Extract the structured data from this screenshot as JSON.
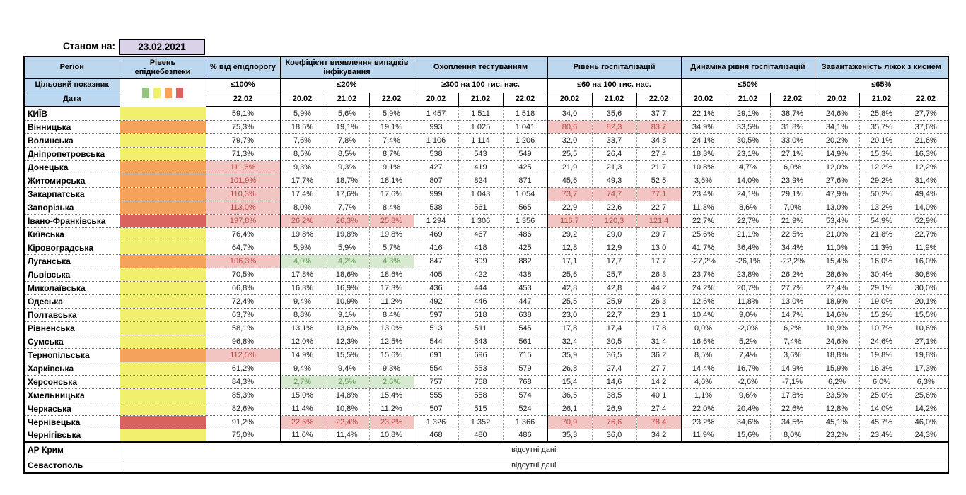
{
  "meta": {
    "as_of_label": "Станом на:",
    "as_of_date": "23.02.2021",
    "missing_data_text": "відсутні дані"
  },
  "colors": {
    "header_bg": "#BDD7EE",
    "date_cell_bg": "#D9D2E9",
    "level": {
      "green": "#93C47D",
      "yellow": "#F2EF6E",
      "orange": "#F5A35C",
      "red": "#D9625F"
    },
    "hl_red_bg": "#F2C5C3",
    "hl_red_text": "#B84743",
    "hl_green_bg": "#D8E9D1",
    "hl_green_text": "#5D9A4C"
  },
  "header": {
    "region": "Регіон",
    "level": "Рівень епіднебезпеки",
    "target_label": "Цільовий показник",
    "date_label": "Дата",
    "legend_colors": [
      "#93C47D",
      "#F2EF6E",
      "#F5A35C",
      "#D9625F"
    ],
    "groups": [
      {
        "title": "% від епідпорогу",
        "target": "≤100%",
        "dates": [
          "22.02"
        ]
      },
      {
        "title": "Коефіцієнт виявлення випадків інфікування",
        "target": "≤20%",
        "dates": [
          "20.02",
          "21.02",
          "22.02"
        ]
      },
      {
        "title": "Охоплення тестуванням",
        "target": "≥300 на 100 тис. нас.",
        "dates": [
          "20.02",
          "21.02",
          "22.02"
        ]
      },
      {
        "title": "Рівень госпіталізацій",
        "target": "≤60 на 100 тис. нас.",
        "dates": [
          "20.02",
          "21.02",
          "22.02"
        ]
      },
      {
        "title": "Динаміка рівня госпіталізацій",
        "target": "≤50%",
        "dates": [
          "20.02",
          "21.02",
          "22.02"
        ]
      },
      {
        "title": "Завантаженість ліжок з киснем",
        "target": "≤65%",
        "dates": [
          "20.02",
          "21.02",
          "22.02"
        ]
      }
    ]
  },
  "rows": [
    {
      "region": "КИЇВ",
      "level": "yellow",
      "hl": "................",
      "values": [
        "59,1%",
        "5,9%",
        "5,6%",
        "5,9%",
        "1 457",
        "1 511",
        "1 518",
        "34,0",
        "35,6",
        "37,7",
        "22,1%",
        "29,1%",
        "38,7%",
        "24,6%",
        "25,8%",
        "27,7%"
      ]
    },
    {
      "region": "Вінницька",
      "level": "orange",
      "hl": ".......rrr......",
      "values": [
        "75,3%",
        "18,5%",
        "19,1%",
        "19,1%",
        "993",
        "1 025",
        "1 041",
        "80,6",
        "82,3",
        "83,7",
        "34,9%",
        "33,5%",
        "31,8%",
        "34,1%",
        "35,7%",
        "37,6%"
      ]
    },
    {
      "region": "Волинська",
      "level": "yellow",
      "hl": "................",
      "values": [
        "79,7%",
        "7,6%",
        "7,8%",
        "7,4%",
        "1 106",
        "1 114",
        "1 206",
        "32,0",
        "33,7",
        "34,8",
        "24,1%",
        "30,5%",
        "33,0%",
        "20,2%",
        "20,1%",
        "21,6%"
      ]
    },
    {
      "region": "Дніпропетровська",
      "level": "yellow",
      "hl": "................",
      "values": [
        "71,3%",
        "8,5%",
        "8,5%",
        "8,7%",
        "538",
        "543",
        "549",
        "25,5",
        "26,4",
        "27,4",
        "18,3%",
        "23,1%",
        "27,1%",
        "14,9%",
        "15,3%",
        "16,3%"
      ]
    },
    {
      "region": "Донецька",
      "level": "orange",
      "hl": "r...............",
      "values": [
        "111,6%",
        "9,3%",
        "9,3%",
        "9,1%",
        "427",
        "419",
        "425",
        "21,9",
        "21,3",
        "21,7",
        "10,8%",
        "4,7%",
        "6,0%",
        "12,0%",
        "12,2%",
        "12,2%"
      ]
    },
    {
      "region": "Житомирська",
      "level": "orange",
      "hl": "r...............",
      "values": [
        "101,9%",
        "17,7%",
        "18,7%",
        "18,1%",
        "807",
        "824",
        "871",
        "45,6",
        "49,3",
        "52,5",
        "3,6%",
        "14,0%",
        "23,9%",
        "27,6%",
        "29,2%",
        "31,4%"
      ]
    },
    {
      "region": "Закарпатська",
      "level": "orange",
      "hl": "r......rrr......",
      "values": [
        "110,3%",
        "17,4%",
        "17,6%",
        "17,6%",
        "999",
        "1 043",
        "1 054",
        "73,7",
        "74,7",
        "77,1",
        "23,4%",
        "24,1%",
        "29,1%",
        "47,9%",
        "50,2%",
        "49,4%"
      ]
    },
    {
      "region": "Запорізька",
      "level": "orange",
      "hl": "r...............",
      "values": [
        "113,0%",
        "8,0%",
        "7,7%",
        "8,4%",
        "538",
        "561",
        "565",
        "22,9",
        "22,6",
        "22,7",
        "11,3%",
        "8,6%",
        "7,0%",
        "13,0%",
        "13,2%",
        "14,0%"
      ]
    },
    {
      "region": "Івано-Франківська",
      "level": "red",
      "hl": "rrrr...rrr......",
      "values": [
        "197,8%",
        "26,2%",
        "26,3%",
        "25,8%",
        "1 294",
        "1 306",
        "1 356",
        "116,7",
        "120,3",
        "121,4",
        "22,7%",
        "22,7%",
        "21,9%",
        "53,4%",
        "54,9%",
        "52,9%"
      ]
    },
    {
      "region": "Київська",
      "level": "yellow",
      "hl": "................",
      "values": [
        "76,4%",
        "19,8%",
        "19,8%",
        "19,8%",
        "469",
        "467",
        "486",
        "29,2",
        "29,0",
        "29,7",
        "25,6%",
        "21,1%",
        "22,5%",
        "21,0%",
        "21,8%",
        "22,7%"
      ]
    },
    {
      "region": "Кіровоградська",
      "level": "yellow",
      "hl": "................",
      "values": [
        "64,7%",
        "5,9%",
        "5,9%",
        "5,7%",
        "416",
        "418",
        "425",
        "12,8",
        "12,9",
        "13,0",
        "41,7%",
        "36,4%",
        "34,4%",
        "11,0%",
        "11,3%",
        "11,9%"
      ]
    },
    {
      "region": "Луганська",
      "level": "orange",
      "hl": "rggg............",
      "values": [
        "106,3%",
        "4,0%",
        "4,2%",
        "4,3%",
        "847",
        "809",
        "882",
        "17,1",
        "17,7",
        "17,7",
        "-27,2%",
        "-26,1%",
        "-22,2%",
        "15,4%",
        "16,0%",
        "16,0%"
      ]
    },
    {
      "region": "Львівська",
      "level": "yellow",
      "hl": "................",
      "values": [
        "70,5%",
        "17,8%",
        "18,6%",
        "18,6%",
        "405",
        "422",
        "438",
        "25,6",
        "25,7",
        "26,3",
        "23,7%",
        "23,8%",
        "26,2%",
        "28,6%",
        "30,4%",
        "30,8%"
      ]
    },
    {
      "region": "Миколаївська",
      "level": "yellow",
      "hl": "................",
      "values": [
        "66,8%",
        "16,3%",
        "16,9%",
        "17,3%",
        "436",
        "444",
        "453",
        "42,8",
        "42,8",
        "44,2",
        "24,2%",
        "20,7%",
        "27,7%",
        "27,4%",
        "29,1%",
        "30,0%"
      ]
    },
    {
      "region": "Одеська",
      "level": "yellow",
      "hl": "................",
      "values": [
        "72,4%",
        "9,4%",
        "10,9%",
        "11,2%",
        "492",
        "446",
        "447",
        "25,5",
        "25,9",
        "26,3",
        "12,6%",
        "11,8%",
        "13,0%",
        "18,9%",
        "19,0%",
        "20,1%"
      ]
    },
    {
      "region": "Полтавська",
      "level": "yellow",
      "hl": "................",
      "values": [
        "63,7%",
        "8,8%",
        "9,1%",
        "8,4%",
        "597",
        "618",
        "638",
        "23,0",
        "22,7",
        "23,1",
        "10,4%",
        "9,0%",
        "14,7%",
        "14,6%",
        "15,2%",
        "15,5%"
      ]
    },
    {
      "region": "Рівненська",
      "level": "yellow",
      "hl": "................",
      "values": [
        "58,1%",
        "13,1%",
        "13,6%",
        "13,0%",
        "513",
        "511",
        "545",
        "17,8",
        "17,4",
        "17,8",
        "0,0%",
        "-2,0%",
        "6,2%",
        "10,9%",
        "10,7%",
        "10,6%"
      ]
    },
    {
      "region": "Сумська",
      "level": "yellow",
      "hl": "................",
      "values": [
        "96,8%",
        "12,0%",
        "12,3%",
        "12,5%",
        "544",
        "543",
        "561",
        "32,4",
        "30,5",
        "31,4",
        "16,6%",
        "5,2%",
        "7,4%",
        "24,6%",
        "24,6%",
        "27,1%"
      ]
    },
    {
      "region": "Тернопільська",
      "level": "orange",
      "hl": "r...............",
      "values": [
        "112,5%",
        "14,9%",
        "15,5%",
        "15,6%",
        "691",
        "696",
        "715",
        "35,9",
        "36,5",
        "36,2",
        "8,5%",
        "7,4%",
        "3,6%",
        "18,8%",
        "19,8%",
        "19,8%"
      ]
    },
    {
      "region": "Харківська",
      "level": "yellow",
      "hl": "................",
      "values": [
        "61,2%",
        "9,4%",
        "9,4%",
        "9,3%",
        "554",
        "553",
        "579",
        "26,8",
        "27,4",
        "27,7",
        "14,4%",
        "16,7%",
        "14,9%",
        "15,9%",
        "16,3%",
        "17,3%"
      ]
    },
    {
      "region": "Херсонська",
      "level": "yellow",
      "hl": ".ggg............",
      "values": [
        "84,3%",
        "2,7%",
        "2,5%",
        "2,6%",
        "757",
        "768",
        "768",
        "15,4",
        "14,6",
        "14,2",
        "4,6%",
        "-2,6%",
        "-7,1%",
        "6,2%",
        "6,0%",
        "6,3%"
      ]
    },
    {
      "region": "Хмельницька",
      "level": "yellow",
      "hl": "................",
      "values": [
        "85,3%",
        "15,0%",
        "14,8%",
        "15,4%",
        "555",
        "558",
        "574",
        "36,5",
        "38,5",
        "40,1",
        "1,1%",
        "9,6%",
        "17,8%",
        "23,5%",
        "25,0%",
        "25,6%"
      ]
    },
    {
      "region": "Черкаська",
      "level": "yellow",
      "hl": "................",
      "values": [
        "82,6%",
        "11,4%",
        "10,8%",
        "11,2%",
        "507",
        "515",
        "524",
        "26,1",
        "26,9",
        "27,4",
        "22,0%",
        "20,4%",
        "22,6%",
        "12,8%",
        "14,0%",
        "14,2%"
      ]
    },
    {
      "region": "Чернівецька",
      "level": "red",
      "hl": ".rrr...rrr......",
      "values": [
        "91,2%",
        "22,6%",
        "22,4%",
        "23,2%",
        "1 326",
        "1 352",
        "1 366",
        "70,9",
        "76,6",
        "78,4",
        "23,2%",
        "34,6%",
        "34,5%",
        "45,1%",
        "45,7%",
        "46,0%"
      ]
    },
    {
      "region": "Чернігівська",
      "level": "yellow",
      "hl": "................",
      "values": [
        "75,0%",
        "11,6%",
        "11,4%",
        "10,8%",
        "468",
        "480",
        "486",
        "35,3",
        "36,0",
        "34,2",
        "11,9%",
        "15,6%",
        "8,0%",
        "23,2%",
        "23,4%",
        "24,3%"
      ]
    }
  ],
  "no_data_regions": [
    "АР Крим",
    "Севастополь"
  ]
}
